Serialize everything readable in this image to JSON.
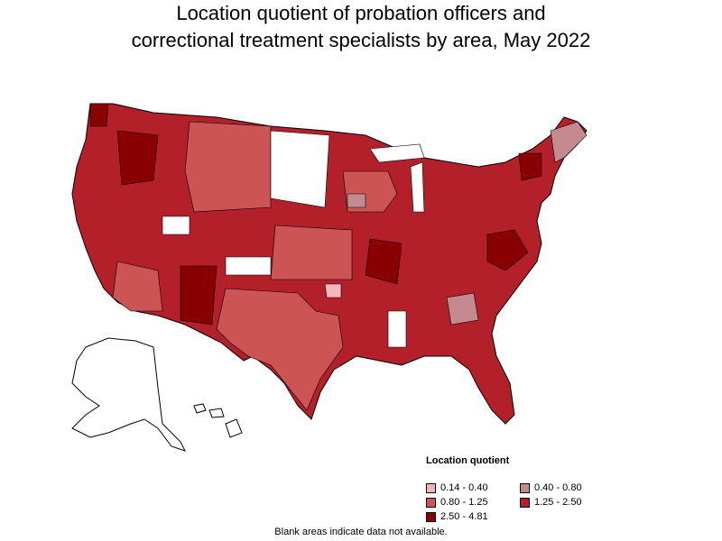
{
  "title": {
    "line1": "Location quotient of probation officers and",
    "line2": "correctional treatment specialists by area, May 2022"
  },
  "legend": {
    "title": "Location quotient",
    "items": [
      {
        "label": "0.14 - 0.40",
        "color": "#f4b6bc"
      },
      {
        "label": "0.40 - 0.80",
        "color": "#c58a90"
      },
      {
        "label": "0.80 - 1.25",
        "color": "#cc5454"
      },
      {
        "label": "1.25 - 2.50",
        "color": "#b4202a"
      },
      {
        "label": "2.50 - 4.81",
        "color": "#880000"
      }
    ]
  },
  "footnote": "Blank areas indicate data not available.",
  "colors": {
    "outline": "#000000",
    "no_data": "#ffffff"
  }
}
